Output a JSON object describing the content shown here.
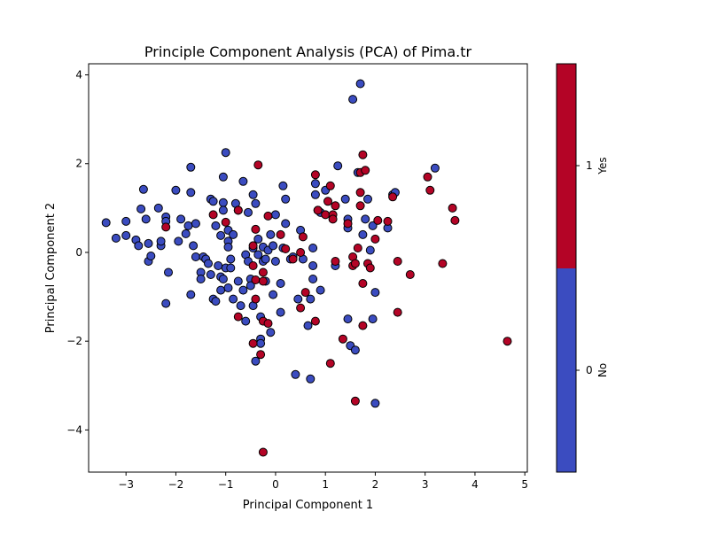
{
  "chart_data": {
    "type": "scatter",
    "title": "Principle Component Analysis (PCA) of Pima.tr",
    "xlabel": "Principal Component 1",
    "ylabel": "Principal Component 2",
    "xlim": [
      -3.75,
      5.05
    ],
    "ylim": [
      -4.95,
      4.25
    ],
    "xticks": [
      -3,
      -2,
      -1,
      0,
      1,
      2,
      3,
      4,
      5
    ],
    "yticks": [
      -4,
      -2,
      0,
      2,
      4
    ],
    "xtick_labels": [
      "−3",
      "−2",
      "−1",
      "0",
      "1",
      "2",
      "3",
      "4",
      "5"
    ],
    "ytick_labels": [
      "−4",
      "−2",
      "0",
      "2",
      "4"
    ],
    "grid": false,
    "colors": {
      "No": "#3b4cc0",
      "Yes": "#b40426",
      "edge": "#000000"
    },
    "colorbar": {
      "label": "Yes",
      "bottom_label": "No",
      "ticks": [
        "0",
        "1"
      ]
    },
    "series": [
      {
        "name": "No",
        "points": [
          [
            -3.4,
            0.67
          ],
          [
            -3.2,
            0.32
          ],
          [
            -3.0,
            0.7
          ],
          [
            -3.0,
            0.38
          ],
          [
            -2.8,
            0.28
          ],
          [
            -2.75,
            0.15
          ],
          [
            -2.7,
            0.98
          ],
          [
            -2.65,
            1.42
          ],
          [
            -2.6,
            0.75
          ],
          [
            -2.55,
            0.2
          ],
          [
            -2.55,
            -0.2
          ],
          [
            -2.5,
            -0.08
          ],
          [
            -2.35,
            1.0
          ],
          [
            -2.3,
            0.15
          ],
          [
            -2.3,
            0.25
          ],
          [
            -2.2,
            0.8
          ],
          [
            -2.2,
            0.7
          ],
          [
            -2.2,
            -1.15
          ],
          [
            -2.15,
            -0.45
          ],
          [
            -2.0,
            1.4
          ],
          [
            -1.95,
            0.25
          ],
          [
            -1.9,
            0.75
          ],
          [
            -1.8,
            0.42
          ],
          [
            -1.75,
            0.6
          ],
          [
            -1.7,
            1.35
          ],
          [
            -1.7,
            -0.95
          ],
          [
            -1.7,
            1.92
          ],
          [
            -1.65,
            0.15
          ],
          [
            -1.6,
            0.65
          ],
          [
            -1.6,
            -0.1
          ],
          [
            -1.5,
            -0.45
          ],
          [
            -1.5,
            -0.6
          ],
          [
            -1.45,
            -0.1
          ],
          [
            -1.4,
            -0.15
          ],
          [
            -1.35,
            -0.25
          ],
          [
            -1.3,
            1.2
          ],
          [
            -1.3,
            -0.5
          ],
          [
            -1.25,
            1.15
          ],
          [
            -1.25,
            -1.05
          ],
          [
            -1.2,
            -1.1
          ],
          [
            -1.2,
            0.6
          ],
          [
            -1.15,
            -0.3
          ],
          [
            -1.1,
            0.38
          ],
          [
            -1.1,
            -0.55
          ],
          [
            -1.1,
            -0.85
          ],
          [
            -1.05,
            -0.6
          ],
          [
            -1.05,
            1.12
          ],
          [
            -1.05,
            0.95
          ],
          [
            -1.05,
            1.7
          ],
          [
            -1.0,
            2.25
          ],
          [
            -1.0,
            -0.35
          ],
          [
            -0.95,
            0.5
          ],
          [
            -0.95,
            0.25
          ],
          [
            -0.95,
            0.12
          ],
          [
            -0.95,
            -0.8
          ],
          [
            -0.9,
            -0.35
          ],
          [
            -0.9,
            -0.15
          ],
          [
            -0.85,
            0.4
          ],
          [
            -0.85,
            -1.05
          ],
          [
            -0.8,
            1.1
          ],
          [
            -0.75,
            0.95
          ],
          [
            -0.75,
            -0.65
          ],
          [
            -0.7,
            -1.2
          ],
          [
            -0.65,
            -0.85
          ],
          [
            -0.65,
            1.6
          ],
          [
            -0.6,
            -1.55
          ],
          [
            -0.6,
            -0.05
          ],
          [
            -0.55,
            -0.2
          ],
          [
            -0.55,
            0.9
          ],
          [
            -0.5,
            -0.6
          ],
          [
            -0.5,
            -0.75
          ],
          [
            -0.45,
            1.3
          ],
          [
            -0.45,
            0.1
          ],
          [
            -0.45,
            -1.2
          ],
          [
            -0.4,
            1.1
          ],
          [
            -0.4,
            -2.45
          ],
          [
            -0.35,
            0.3
          ],
          [
            -0.35,
            -0.05
          ],
          [
            -0.3,
            -1.45
          ],
          [
            -0.3,
            -1.95
          ],
          [
            -0.3,
            -2.05
          ],
          [
            -0.25,
            -0.2
          ],
          [
            -0.25,
            0.12
          ],
          [
            -0.2,
            -0.15
          ],
          [
            -0.2,
            -0.65
          ],
          [
            -0.15,
            0.05
          ],
          [
            -0.1,
            -1.8
          ],
          [
            -0.1,
            0.4
          ],
          [
            -0.05,
            -0.95
          ],
          [
            -0.05,
            0.15
          ],
          [
            0.0,
            0.85
          ],
          [
            0.0,
            -0.2
          ],
          [
            0.1,
            -0.7
          ],
          [
            0.1,
            -1.35
          ],
          [
            0.15,
            0.1
          ],
          [
            0.15,
            1.5
          ],
          [
            0.2,
            1.2
          ],
          [
            0.2,
            0.65
          ],
          [
            0.3,
            -0.15
          ],
          [
            0.35,
            -0.1
          ],
          [
            0.4,
            -2.75
          ],
          [
            0.45,
            -1.05
          ],
          [
            0.5,
            0.5
          ],
          [
            0.55,
            -0.15
          ],
          [
            0.65,
            -1.65
          ],
          [
            0.7,
            -2.85
          ],
          [
            0.7,
            -1.05
          ],
          [
            0.75,
            0.1
          ],
          [
            0.75,
            -0.3
          ],
          [
            0.75,
            -0.6
          ],
          [
            0.8,
            1.55
          ],
          [
            0.8,
            1.3
          ],
          [
            0.85,
            0.95
          ],
          [
            0.9,
            0.9
          ],
          [
            0.9,
            -0.85
          ],
          [
            1.0,
            1.4
          ],
          [
            1.2,
            -0.3
          ],
          [
            1.25,
            1.95
          ],
          [
            1.4,
            1.2
          ],
          [
            1.45,
            -1.5
          ],
          [
            1.45,
            0.75
          ],
          [
            1.45,
            0.55
          ],
          [
            1.5,
            -2.1
          ],
          [
            1.55,
            3.45
          ],
          [
            1.6,
            -2.2
          ],
          [
            1.65,
            1.8
          ],
          [
            1.7,
            3.8
          ],
          [
            1.75,
            0.4
          ],
          [
            1.8,
            0.75
          ],
          [
            1.85,
            1.2
          ],
          [
            1.9,
            0.05
          ],
          [
            1.95,
            -1.5
          ],
          [
            1.95,
            0.6
          ],
          [
            2.0,
            -3.4
          ],
          [
            2.0,
            -0.9
          ],
          [
            2.25,
            0.55
          ],
          [
            2.35,
            1.3
          ],
          [
            2.4,
            1.35
          ],
          [
            3.2,
            1.9
          ]
        ]
      },
      {
        "name": "Yes",
        "points": [
          [
            -2.2,
            0.57
          ],
          [
            -1.25,
            0.85
          ],
          [
            -1.0,
            0.68
          ],
          [
            -0.75,
            0.95
          ],
          [
            -0.75,
            -1.45
          ],
          [
            -0.45,
            0.15
          ],
          [
            -0.45,
            -2.05
          ],
          [
            -0.45,
            -0.3
          ],
          [
            -0.4,
            -0.62
          ],
          [
            -0.4,
            0.52
          ],
          [
            -0.4,
            -1.05
          ],
          [
            -0.35,
            1.97
          ],
          [
            -0.3,
            -2.3
          ],
          [
            -0.25,
            -0.45
          ],
          [
            -0.25,
            -0.65
          ],
          [
            -0.25,
            -1.55
          ],
          [
            -0.25,
            -4.5
          ],
          [
            -0.15,
            -1.6
          ],
          [
            -0.15,
            0.82
          ],
          [
            0.1,
            0.4
          ],
          [
            0.2,
            0.08
          ],
          [
            0.35,
            -0.15
          ],
          [
            0.5,
            0.0
          ],
          [
            0.5,
            -1.25
          ],
          [
            0.55,
            0.35
          ],
          [
            0.6,
            -0.9
          ],
          [
            0.8,
            -1.55
          ],
          [
            0.8,
            1.75
          ],
          [
            0.85,
            0.95
          ],
          [
            1.0,
            0.85
          ],
          [
            1.05,
            1.15
          ],
          [
            1.1,
            1.5
          ],
          [
            1.1,
            -2.5
          ],
          [
            1.15,
            0.85
          ],
          [
            1.15,
            0.75
          ],
          [
            1.2,
            1.05
          ],
          [
            1.2,
            -0.2
          ],
          [
            1.35,
            -1.95
          ],
          [
            1.45,
            0.65
          ],
          [
            1.55,
            -0.1
          ],
          [
            1.55,
            -0.3
          ],
          [
            1.6,
            -3.35
          ],
          [
            1.6,
            -0.25
          ],
          [
            1.65,
            0.1
          ],
          [
            1.7,
            1.35
          ],
          [
            1.7,
            1.05
          ],
          [
            1.7,
            1.8
          ],
          [
            1.75,
            -0.7
          ],
          [
            1.75,
            -1.65
          ],
          [
            1.75,
            2.2
          ],
          [
            1.8,
            1.85
          ],
          [
            1.85,
            -0.25
          ],
          [
            1.9,
            -0.35
          ],
          [
            2.0,
            0.3
          ],
          [
            2.05,
            0.72
          ],
          [
            2.25,
            0.7
          ],
          [
            2.35,
            1.25
          ],
          [
            2.45,
            -1.35
          ],
          [
            2.45,
            -0.2
          ],
          [
            2.7,
            -0.5
          ],
          [
            3.05,
            1.7
          ],
          [
            3.1,
            1.4
          ],
          [
            3.35,
            -0.25
          ],
          [
            3.55,
            1.0
          ],
          [
            3.6,
            0.72
          ],
          [
            4.65,
            -2.0
          ]
        ]
      }
    ]
  }
}
